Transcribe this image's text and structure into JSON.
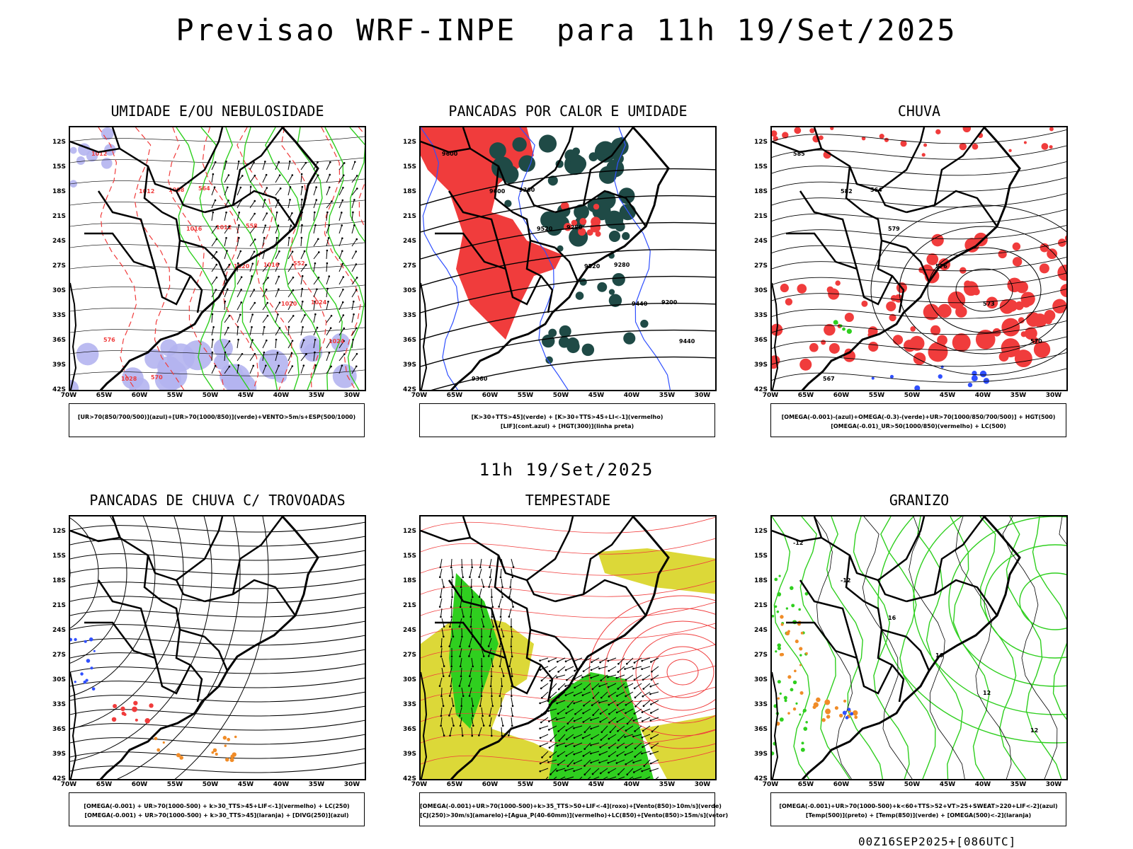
{
  "title": "Previsao WRF-INPE  para 11h 19/Set/2025",
  "mid_date": "11h 19/Set/2025",
  "run_info": "00Z16SEP2025+[086UTC]",
  "y_ticks": [
    "12S",
    "15S",
    "18S",
    "21S",
    "24S",
    "27S",
    "30S",
    "33S",
    "36S",
    "39S",
    "42S"
  ],
  "x_ticks": [
    "70W",
    "65W",
    "60W",
    "55W",
    "50W",
    "45W",
    "40W",
    "35W",
    "30W"
  ],
  "panels": [
    {
      "title": "UMIDADE E/OU NEBULOSIDADE",
      "legend": [
        "[UR>70(850/700/500)](azul)+[UR>70(1000/850)](verde)+VENTO>5m/s+ESP(500/1000)"
      ],
      "contour_labels": [
        "1012",
        "1012",
        "1016",
        "1020",
        "1020",
        "1024",
        "1028",
        "1008",
        "1012",
        "1016",
        "1024",
        "576",
        "570",
        "564",
        "558",
        "552"
      ]
    },
    {
      "title": "PANCADAS POR CALOR E UMIDADE",
      "legend": [
        "[K>30+TTS>45](verde) + [K>30+TTS>45+LI<-1](vermelho)",
        "[LIF](cont.azul) + [HGT(300)](linha preta)"
      ],
      "contour_labels": [
        "9600",
        "9600",
        "9520",
        "9520",
        "9440",
        "9440",
        "9360",
        "9360",
        "9280",
        "9280",
        "9200"
      ]
    },
    {
      "title": "CHUVA",
      "legend": [
        "[OMEGA(-0.001)-(azul)+OMEGA(-0.3)-(verde)+UR>70(1000/850/700/500)] + HGT(500)",
        "[OMEGA(-0.01)_UR>50(1000/850)(vermelho) + LC(500)"
      ],
      "contour_labels": [
        "585",
        "582",
        "579",
        "576",
        "573",
        "570",
        "567",
        "564"
      ]
    },
    {
      "title": "PANCADAS DE CHUVA C/ TROVOADAS",
      "legend": [
        "[OMEGA(-0.001) + UR>70(1000-500) + k>30_TTS>45+LIF<-1](vermelho) + LC(250)",
        "[OMEGA(-0.001) + UR>70(1000-500) + k>30_TTS>45](laranja) + [DIVG(250)](azul)"
      ],
      "contour_labels": []
    },
    {
      "title": "TEMPESTADE",
      "legend": [
        "[OMEGA(-0.001)+UR>70(1000-500)+k>35_TTS>50+LIF<-4](roxo)+[Vento(850)>10m/s](verde)",
        "[CJ(250)>30m/s](amarelo)+[Agua_P(40-60mm)](vermelho)+LC(850)+[Vento(850)>15m/s](vetor)"
      ],
      "contour_labels": []
    },
    {
      "title": "GRANIZO",
      "legend": [
        "[OMEGA(-0.001)+UR>70(1000-500)+k<60+TTS>52+VT>25+SWEAT>220+LIF<-2](azul)",
        "[Temp(500)](preto) + [Temp(850)](verde) + [OMEGA(500)<-2](laranja)"
      ],
      "contour_labels": [
        "-12",
        "-12",
        "16",
        "16",
        "12",
        "12"
      ]
    }
  ],
  "colors": {
    "red": "#f03c3c",
    "green": "#2fcf1f",
    "blue": "#3050ff",
    "lavender": "#b4b4f0",
    "yellow": "#dcd838",
    "darkteal": "#1f4a46",
    "orange": "#f08c28",
    "black": "#000000"
  }
}
